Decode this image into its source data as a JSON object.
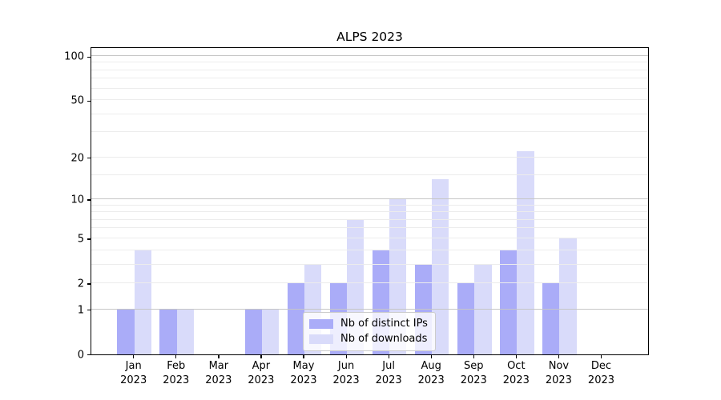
{
  "figure": {
    "title": "ALPS 2023",
    "background": "#ffffff"
  },
  "chart_data": {
    "type": "bar",
    "title": "ALPS 2023",
    "categories": [
      "Jan 2023",
      "Feb 2023",
      "Mar 2023",
      "Apr 2023",
      "May 2023",
      "Jun 2023",
      "Jul 2023",
      "Aug 2023",
      "Sep 2023",
      "Oct 2023",
      "Nov 2023",
      "Dec 2023"
    ],
    "series": [
      {
        "name": "Nb of distinct IPs",
        "color": "#aaacf8",
        "values": [
          1,
          1,
          0,
          1,
          2,
          2,
          4,
          3,
          2,
          4,
          2,
          0
        ]
      },
      {
        "name": "Nb of downloads",
        "color": "#d9dbfa",
        "values": [
          4,
          1,
          0,
          1,
          3,
          7,
          10,
          14,
          3,
          22,
          5,
          0
        ]
      }
    ],
    "xlabel": "",
    "ylabel": "",
    "yscale": "log1p",
    "ylim": [
      0,
      116
    ],
    "yticks": [
      0,
      1,
      2,
      5,
      10,
      20,
      50,
      100
    ],
    "grid": {
      "on": true,
      "major_values": [
        1,
        10,
        100
      ],
      "minor_values": [
        2,
        3,
        4,
        5,
        6,
        7,
        8,
        9,
        15,
        20,
        30,
        40,
        50,
        60,
        70,
        80,
        90
      ],
      "major_color": "#c6c6c6",
      "minor_color": "#ececec"
    },
    "legend": {
      "position": "lower center"
    }
  },
  "axis": {
    "spine_color": "#000000",
    "tick_color": "#000000",
    "text_color": "#000000"
  }
}
